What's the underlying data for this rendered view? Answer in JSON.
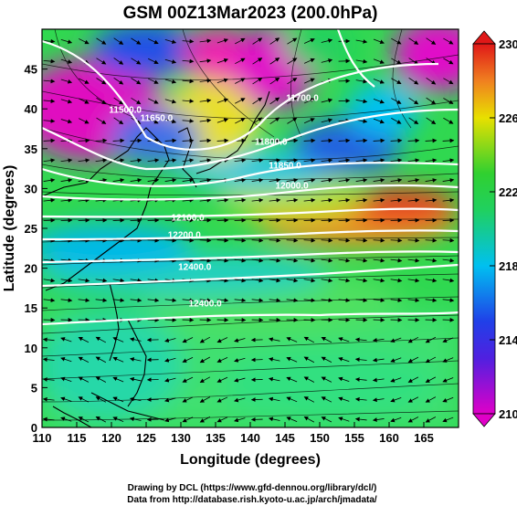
{
  "title": "GSM 00Z13Mar2023 (200.0hPa)",
  "axes": {
    "xlabel": "Longitude (degrees)",
    "ylabel": "Latitude  (degrees)",
    "x_ticks": [
      110,
      115,
      120,
      125,
      130,
      135,
      140,
      145,
      150,
      155,
      160,
      165
    ],
    "x_range": [
      110,
      170
    ],
    "y_ticks": [
      0,
      5,
      10,
      15,
      20,
      25,
      30,
      35,
      40,
      45
    ],
    "y_range": [
      0,
      50
    ]
  },
  "colorbar": {
    "ticks": [
      210,
      214,
      218,
      222,
      226,
      230
    ],
    "range": [
      210,
      230
    ],
    "colors": [
      "#e000c8",
      "#2020e0",
      "#00c8f0",
      "#20d040",
      "#e0e000",
      "#f08020",
      "#e02020"
    ]
  },
  "contour_labels": [
    {
      "text": "11700.0",
      "lon": 147.5,
      "lat": 41.0
    },
    {
      "text": "11800.0",
      "lon": 143.0,
      "lat": 35.5
    },
    {
      "text": "11850.0",
      "lon": 145.0,
      "lat": 32.5
    },
    {
      "text": "12000.0",
      "lon": 146.0,
      "lat": 30.0
    },
    {
      "text": "12100.0",
      "lon": 131.0,
      "lat": 26.0
    },
    {
      "text": "12200.0",
      "lon": 130.5,
      "lat": 23.8
    },
    {
      "text": "12400.0",
      "lon": 132.0,
      "lat": 19.8
    },
    {
      "text": "12400.0",
      "lon": 133.5,
      "lat": 15.2
    },
    {
      "text": "11650.0",
      "lon": 126.5,
      "lat": 38.5
    },
    {
      "text": "11500.0",
      "lon": 122.0,
      "lat": 39.5
    }
  ],
  "footer": {
    "line1": "Drawing by DCL (https://www.gfd-dennou.org/library/dcl/)",
    "line2": "Data from http://database.rish.kyoto-u.ac.jp/arch/jmadata/"
  }
}
